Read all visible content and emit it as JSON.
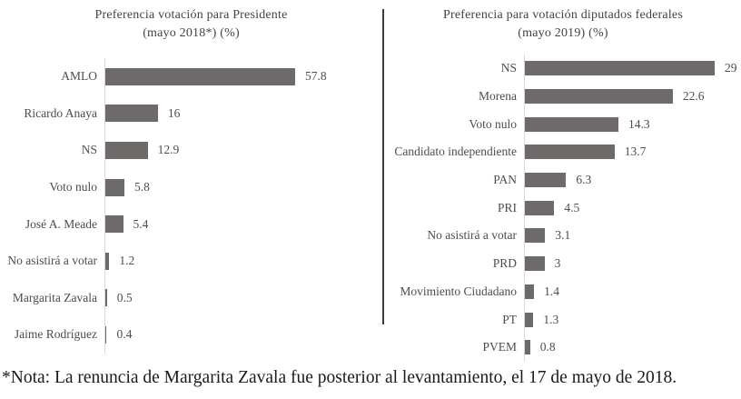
{
  "footer": {
    "note": "*Nota: La renuncia de Margarita Zavala fue posterior al levantamiento, el 17 de mayo de 2018."
  },
  "divider_color": "#3c3c3c",
  "chart_data": [
    {
      "type": "bar",
      "orientation": "horizontal",
      "title": "Preferencia votación para Presidente",
      "subtitle": "(mayo 2018*) (%)",
      "categories": [
        "AMLO",
        "Ricardo Anaya",
        "NS",
        "Voto nulo",
        "José A. Meade",
        "No asistirá a votar",
        "Margarita Zavala",
        "Jaime Rodríguez"
      ],
      "values": [
        57.8,
        16,
        12.9,
        5.8,
        5.4,
        1.2,
        0.5,
        0.4
      ],
      "value_labels": [
        "57.8",
        "16",
        "12.9",
        "5.8",
        "5.4",
        "1.2",
        "0.5",
        "0.4"
      ],
      "xlim": [
        0,
        57.8
      ],
      "bar_color": "#6f6a6a",
      "axis_color": "#d9d9d9",
      "grid": false,
      "legend": false
    },
    {
      "type": "bar",
      "orientation": "horizontal",
      "title": "Preferencia  para votación diputados federales",
      "subtitle": "(mayo 2019) (%)",
      "categories": [
        "NS",
        "Morena",
        "Voto nulo",
        "Candidato independiente",
        "PAN",
        "PRI",
        "No asistirá a votar",
        "PRD",
        "Movimiento Ciudadano",
        "PT",
        "PVEM"
      ],
      "values": [
        29,
        22.6,
        14.3,
        13.7,
        6.3,
        4.5,
        3.1,
        3,
        1.4,
        1.3,
        0.8
      ],
      "value_labels": [
        "29",
        "22.6",
        "14.3",
        "13.7",
        "6.3",
        "4.5",
        "3.1",
        "3",
        "1.4",
        "1.3",
        "0.8"
      ],
      "xlim": [
        0,
        29
      ],
      "bar_color": "#6f6a6a",
      "axis_color": "#d9d9d9",
      "grid": false,
      "legend": false
    }
  ]
}
